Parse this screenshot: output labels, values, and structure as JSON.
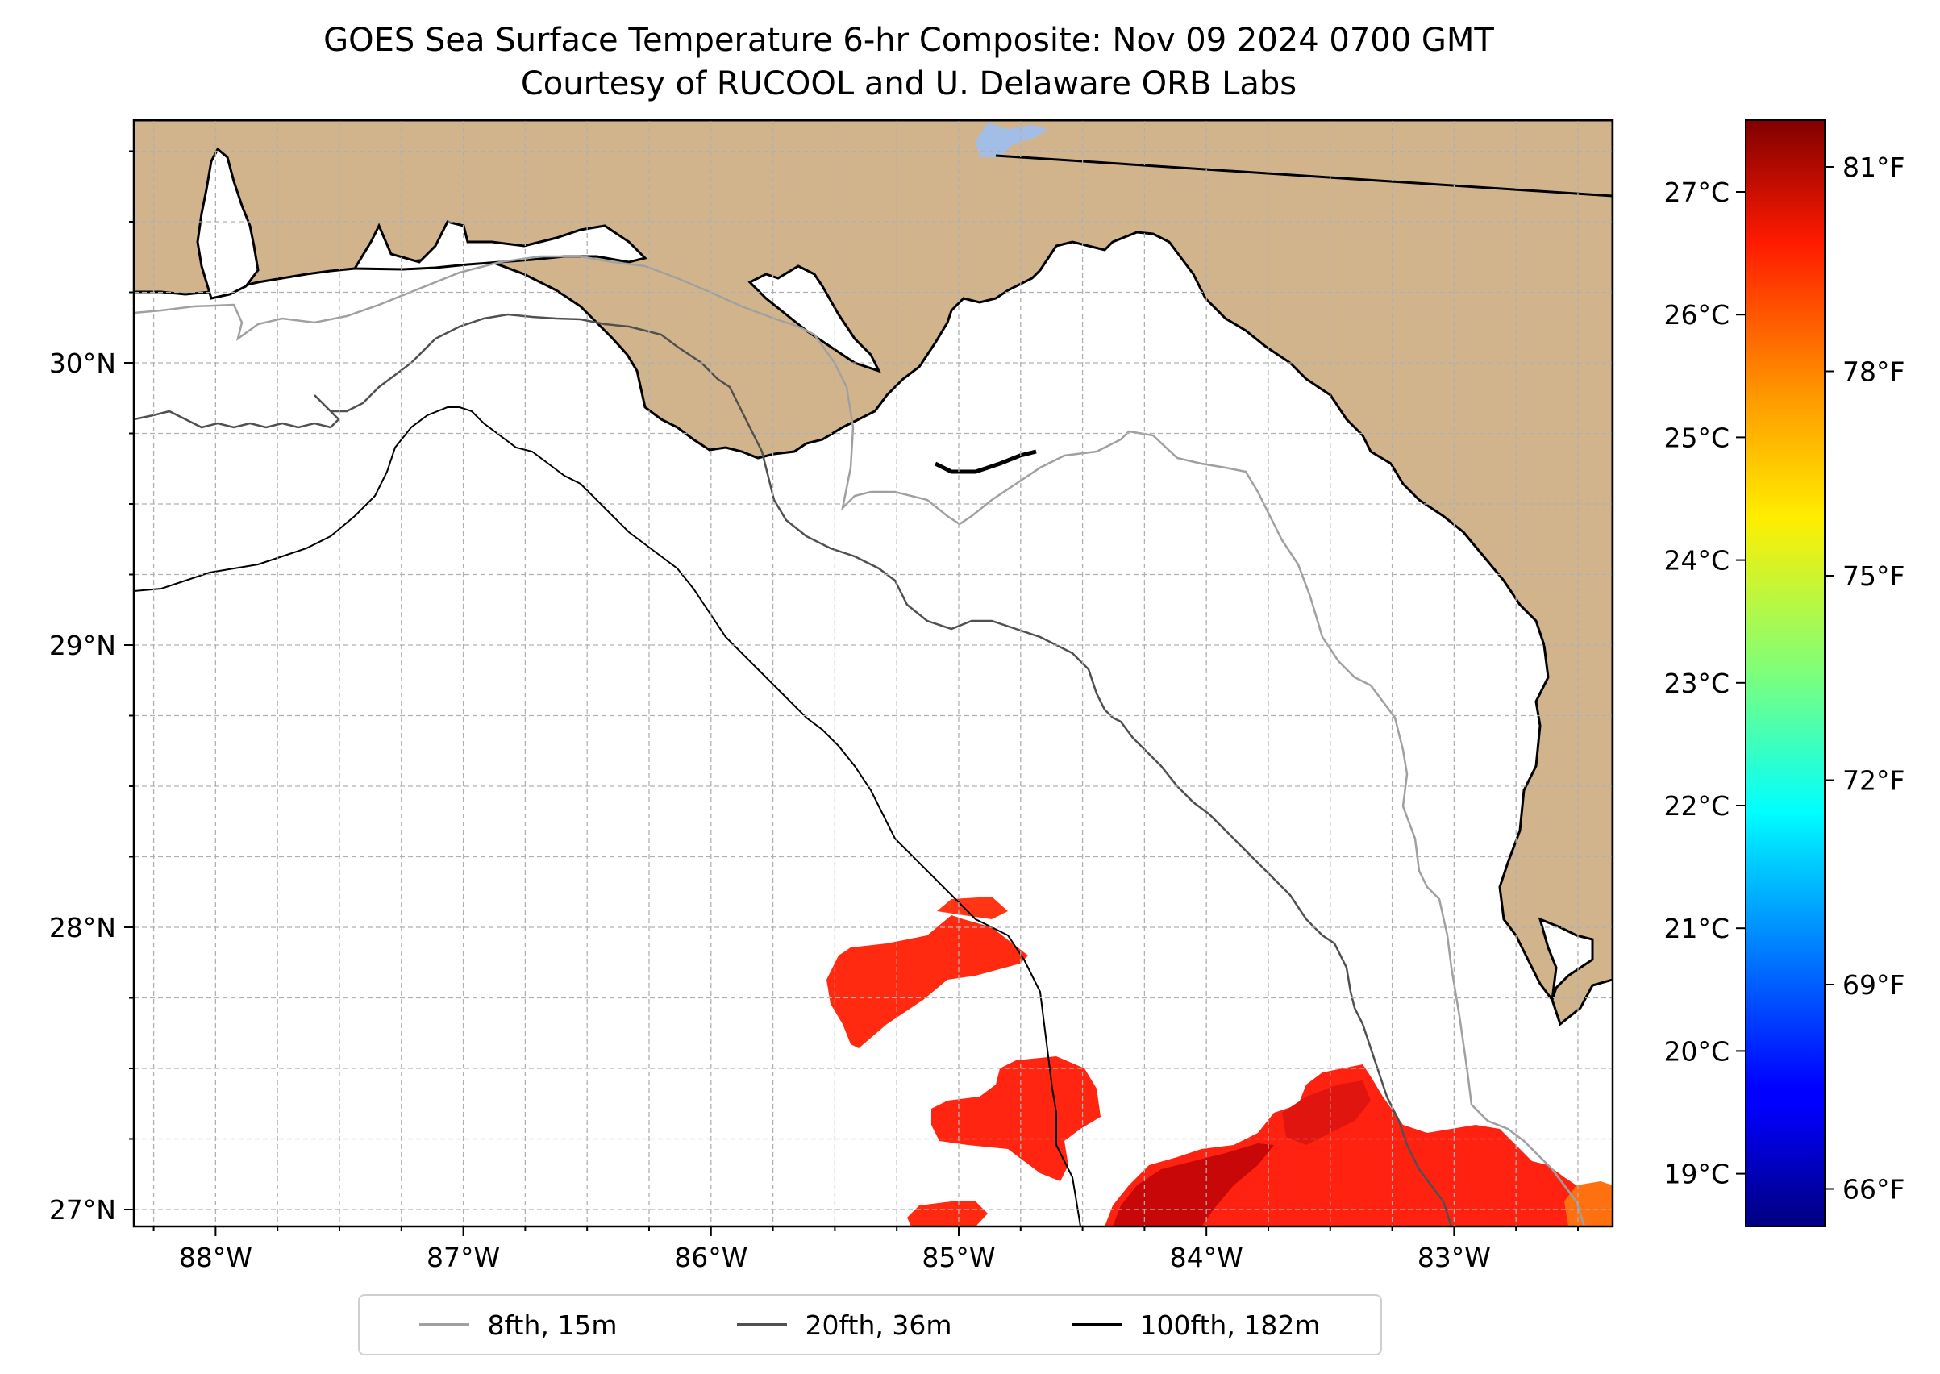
{
  "title": {
    "line1": "GOES Sea Surface Temperature 6-hr Composite: Nov 09 2024 0700 GMT",
    "line2": "Courtesy of RUCOOL and U. Delaware ORB Labs"
  },
  "map": {
    "lon_range": [
      -88.33,
      -82.36
    ],
    "lat_range": [
      26.94,
      30.86
    ],
    "lon_ticks": [
      {
        "value": -88,
        "label": "88°W"
      },
      {
        "value": -87,
        "label": "87°W"
      },
      {
        "value": -86,
        "label": "86°W"
      },
      {
        "value": -85,
        "label": "85°W"
      },
      {
        "value": -84,
        "label": "84°W"
      },
      {
        "value": -83,
        "label": "83°W"
      }
    ],
    "lat_ticks": [
      {
        "value": 27,
        "label": "27°N"
      },
      {
        "value": 28,
        "label": "28°N"
      },
      {
        "value": 29,
        "label": "29°N"
      },
      {
        "value": 30,
        "label": "30°N"
      }
    ],
    "grid": true,
    "colors": {
      "land": "#d2b48c",
      "water": "#ffffff",
      "lake": "#a2bde6",
      "grid": "#b0b0b0"
    }
  },
  "colorbar": {
    "colormap": "jet",
    "celsius_ticks": [
      "27°C",
      "26°C",
      "25°C",
      "24°C",
      "23°C",
      "22°C",
      "21°C",
      "20°C",
      "19°C"
    ],
    "fahrenheit_ticks": [
      "81°F",
      "78°F",
      "75°F",
      "72°F",
      "69°F",
      "66°F"
    ]
  },
  "legend": {
    "placement": "bottom-center",
    "items": [
      {
        "label": "8fth, 15m",
        "color": "#a0a0a0"
      },
      {
        "label": "20fth, 36m",
        "color": "#505050"
      },
      {
        "label": "100fth, 182m",
        "color": "#000000"
      }
    ]
  }
}
